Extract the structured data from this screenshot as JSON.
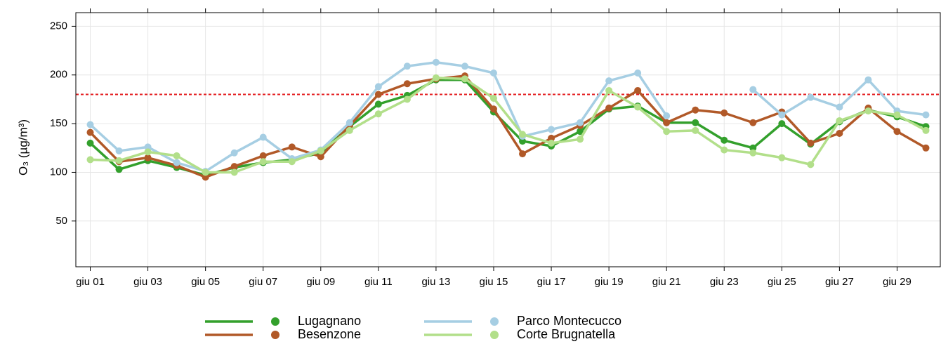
{
  "chart_data": {
    "type": "line",
    "y_label": "O₃ (µg/m³)",
    "categories": [
      "giu 01",
      null,
      "giu 03",
      null,
      "giu 05",
      null,
      "giu 07",
      null,
      "giu 09",
      null,
      "giu 11",
      null,
      "giu 13",
      null,
      "giu 15",
      null,
      "giu 17",
      null,
      "giu 19",
      null,
      "giu 21",
      null,
      "giu 23",
      null,
      "giu 25",
      null,
      "giu 27",
      null,
      "giu 29",
      null
    ],
    "series": [
      {
        "name": "Lugagnano",
        "color": "#33a02c",
        "values": [
          130,
          103,
          112,
          105,
          97,
          105,
          110,
          113,
          120,
          147,
          170,
          179,
          195,
          195,
          162,
          132,
          127,
          142,
          165,
          168,
          151,
          151,
          133,
          125,
          150,
          129,
          152,
          164,
          157,
          147
        ]
      },
      {
        "name": "Besenzone",
        "color": "#b15928",
        "values": [
          141,
          111,
          115,
          107,
          95,
          106,
          117,
          126,
          116,
          148,
          180,
          191,
          196,
          199,
          165,
          119,
          135,
          148,
          166,
          184,
          151,
          164,
          161,
          151,
          162,
          130,
          140,
          166,
          142,
          125
        ]
      },
      {
        "name": "Parco Montecucco",
        "color": "#a6cee3",
        "values": [
          149,
          122,
          126,
          110,
          101,
          120,
          136,
          114,
          123,
          151,
          188,
          209,
          213,
          209,
          202,
          137,
          144,
          151,
          194,
          202,
          158,
          null,
          null,
          185,
          159,
          177,
          167,
          195,
          163,
          159
        ]
      },
      {
        "name": "Corte Brugnatella",
        "color": "#b2df8a",
        "values": [
          113,
          112,
          121,
          117,
          100,
          100,
          111,
          111,
          122,
          143,
          160,
          175,
          197,
          196,
          176,
          139,
          130,
          134,
          184,
          167,
          142,
          143,
          123,
          120,
          115,
          108,
          153,
          163,
          159,
          143
        ]
      }
    ],
    "threshold": 180,
    "threshold_color": "#e31a1c",
    "ylim": [
      3,
      264
    ],
    "yticks": [
      50,
      100,
      150,
      200,
      250
    ],
    "grid": true
  }
}
